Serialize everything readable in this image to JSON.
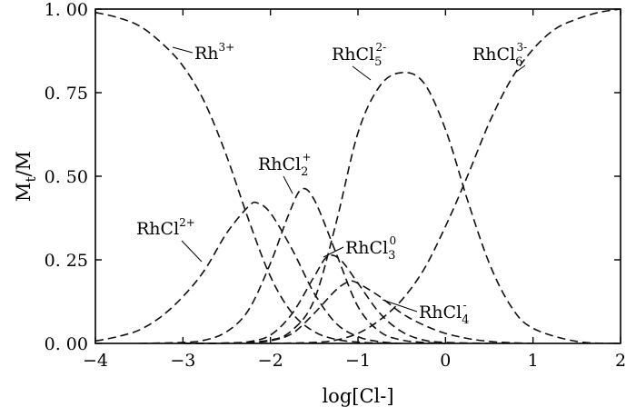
{
  "chart_data": {
    "type": "line",
    "title": "",
    "xlabel": "log[Cl-]",
    "ylabel": "Mt/M",
    "xlim": [
      -4,
      2
    ],
    "ylim": [
      0,
      1
    ],
    "xticks": [
      -4,
      -3,
      -2,
      -1,
      0,
      1,
      2
    ],
    "xtick_labels": [
      "−4",
      "−3",
      "−2",
      "−1",
      "0",
      "1",
      "2"
    ],
    "yticks": [
      0,
      0.25,
      0.5,
      0.75,
      1.0
    ],
    "ytick_labels": [
      "0. 00",
      "0. 25",
      "0. 50",
      "0. 75",
      "1. 00"
    ],
    "grid": false,
    "line_style": "dashed",
    "series": [
      {
        "name": "Rh3+",
        "x": [
          -4,
          -3.75,
          -3.5,
          -3.25,
          -3,
          -2.75,
          -2.5,
          -2.25,
          -2,
          -1.75,
          -1.5,
          -1.25,
          -1,
          -0.75,
          -0.5
        ],
        "y": [
          0.99,
          0.975,
          0.95,
          0.9,
          0.83,
          0.72,
          0.56,
          0.37,
          0.2,
          0.09,
          0.035,
          0.012,
          0.004,
          0.001,
          0
        ]
      },
      {
        "name": "RhCl2+",
        "x": [
          -4,
          -3.75,
          -3.5,
          -3.25,
          -3,
          -2.75,
          -2.5,
          -2.25,
          -2.15,
          -2,
          -1.75,
          -1.5,
          -1.25,
          -1,
          -0.75,
          -0.5
        ],
        "y": [
          0.007,
          0.02,
          0.04,
          0.08,
          0.14,
          0.22,
          0.33,
          0.41,
          0.42,
          0.39,
          0.28,
          0.15,
          0.06,
          0.02,
          0.005,
          0
        ]
      },
      {
        "name": "RhCl2+_2",
        "x": [
          -3.5,
          -3,
          -2.75,
          -2.5,
          -2.25,
          -2,
          -1.8,
          -1.65,
          -1.5,
          -1.25,
          -1,
          -0.75,
          -0.5,
          -0.25,
          0
        ],
        "y": [
          0,
          0.003,
          0.01,
          0.035,
          0.1,
          0.24,
          0.38,
          0.46,
          0.43,
          0.27,
          0.11,
          0.035,
          0.01,
          0.003,
          0
        ]
      },
      {
        "name": "RhCl3_0",
        "x": [
          -3,
          -2.5,
          -2.25,
          -2,
          -1.75,
          -1.5,
          -1.35,
          -1.2,
          -1,
          -0.75,
          -0.5,
          -0.25,
          0,
          0.5
        ],
        "y": [
          0,
          0.001,
          0.005,
          0.025,
          0.09,
          0.2,
          0.26,
          0.25,
          0.18,
          0.09,
          0.035,
          0.01,
          0.003,
          0
        ]
      },
      {
        "name": "RhCl4-",
        "x": [
          -3,
          -2.5,
          -2.25,
          -2,
          -1.75,
          -1.5,
          -1.25,
          -1.1,
          -1,
          -0.75,
          -0.5,
          -0.25,
          0,
          0.25,
          0.5,
          0.75,
          1
        ],
        "y": [
          0,
          0,
          0.002,
          0.008,
          0.03,
          0.09,
          0.16,
          0.185,
          0.18,
          0.14,
          0.09,
          0.055,
          0.03,
          0.015,
          0.006,
          0.002,
          0
        ]
      },
      {
        "name": "RhCl5_2-",
        "x": [
          -3,
          -2.5,
          -2,
          -1.75,
          -1.5,
          -1.25,
          -1,
          -0.75,
          -0.5,
          -0.25,
          0,
          0.25,
          0.5,
          0.75,
          1,
          1.5,
          2
        ],
        "y": [
          0,
          0.001,
          0.01,
          0.04,
          0.13,
          0.36,
          0.63,
          0.77,
          0.81,
          0.78,
          0.64,
          0.43,
          0.24,
          0.11,
          0.045,
          0.006,
          0
        ]
      },
      {
        "name": "RhCl6_3-",
        "x": [
          -2,
          -1.5,
          -1.25,
          -1,
          -0.75,
          -0.5,
          -0.25,
          0,
          0.25,
          0.5,
          0.75,
          1,
          1.25,
          1.5,
          1.75,
          2
        ],
        "y": [
          0,
          0.003,
          0.01,
          0.03,
          0.07,
          0.13,
          0.22,
          0.35,
          0.5,
          0.66,
          0.79,
          0.88,
          0.94,
          0.97,
          0.99,
          1.0
        ]
      }
    ],
    "labels": [
      {
        "base": "Rh",
        "sup": "3+",
        "sub": ""
      },
      {
        "base": "RhCl",
        "sup": "2+",
        "sub": ""
      },
      {
        "base": "RhCl",
        "sup": "+",
        "sub": "2"
      },
      {
        "base": "RhCl",
        "sup": "0",
        "sub": "3"
      },
      {
        "base": "RhCl",
        "sup": "-",
        "sub": "4"
      },
      {
        "base": "RhCl",
        "sup": "2-",
        "sub": "5"
      },
      {
        "base": "RhCl",
        "sup": "3-",
        "sub": "6"
      }
    ],
    "ylabel_parts": {
      "base": "M",
      "sub": "t",
      "rest": "/M"
    }
  }
}
